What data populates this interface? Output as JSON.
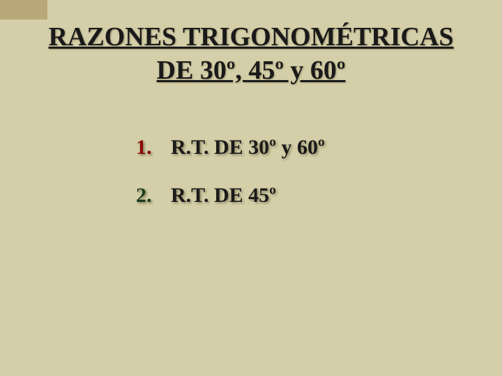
{
  "slide": {
    "background_color": "#d4cfa8",
    "tab_color": "#b8a878",
    "title": "RAZONES TRIGONOMÉTRICAS DE 30º, 45º y 60º",
    "title_color": "#1a1a1a",
    "title_fontsize": 38,
    "items": [
      {
        "number": "1.",
        "number_color": "#8b0505",
        "text": "R.T. DE 30º y 60º"
      },
      {
        "number": "2.",
        "number_color": "#1a3a1e",
        "text": "R.T. DE 45º"
      }
    ],
    "item_fontsize": 30,
    "item_text_color": "#1a1a1a"
  }
}
